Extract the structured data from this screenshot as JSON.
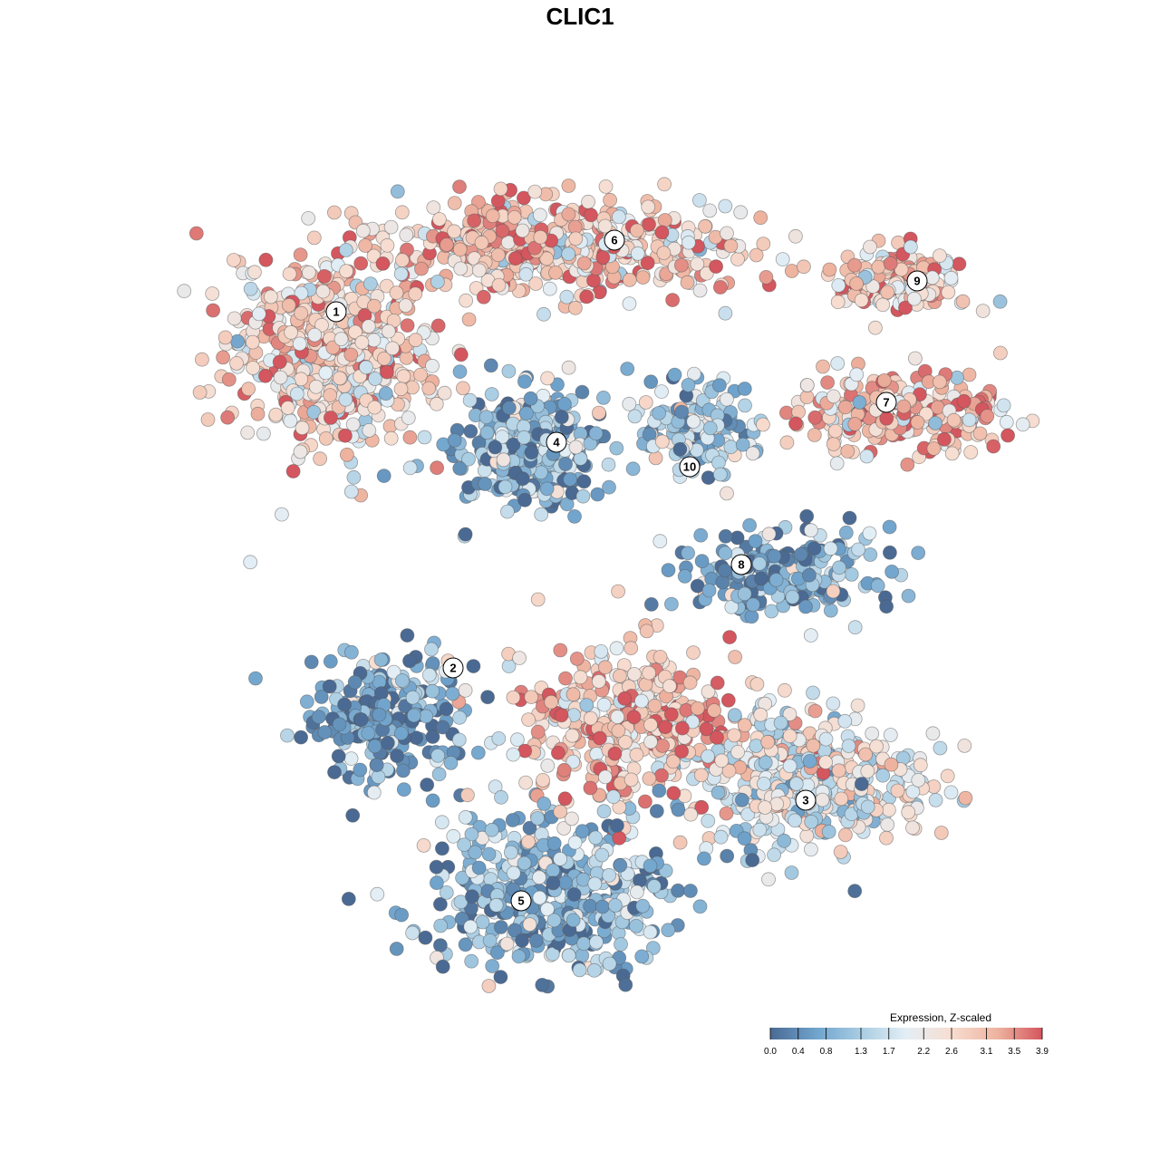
{
  "chart_data": {
    "type": "scatter",
    "title": "CLIC1",
    "xlabel": "",
    "ylabel": "",
    "grid": false,
    "legend": {
      "title": "Expression, Z-scaled",
      "placement": "bottom-right",
      "range": [
        0.0,
        3.9
      ],
      "ticks": [
        "0.0",
        "0.4",
        "0.8",
        "1.3",
        "1.7",
        "2.2",
        "2.6",
        "3.1",
        "3.5",
        "3.9"
      ],
      "colors": [
        "#4a6a93",
        "#6fa3cc",
        "#a9cde3",
        "#e3eef5",
        "#f7ddd0",
        "#eeb4a0",
        "#d4565e"
      ]
    },
    "clusters": [
      {
        "label": "1",
        "mean_expression": 2.7
      },
      {
        "label": "2",
        "mean_expression": 0.7
      },
      {
        "label": "3",
        "mean_expression": 1.9
      },
      {
        "label": "4",
        "mean_expression": 0.9
      },
      {
        "label": "5",
        "mean_expression": 1.0
      },
      {
        "label": "6",
        "mean_expression": 2.8
      },
      {
        "label": "7",
        "mean_expression": 3.0
      },
      {
        "label": "8",
        "mean_expression": 0.8
      },
      {
        "label": "9",
        "mean_expression": 2.8
      },
      {
        "label": "10",
        "mean_expression": 1.3
      }
    ]
  }
}
